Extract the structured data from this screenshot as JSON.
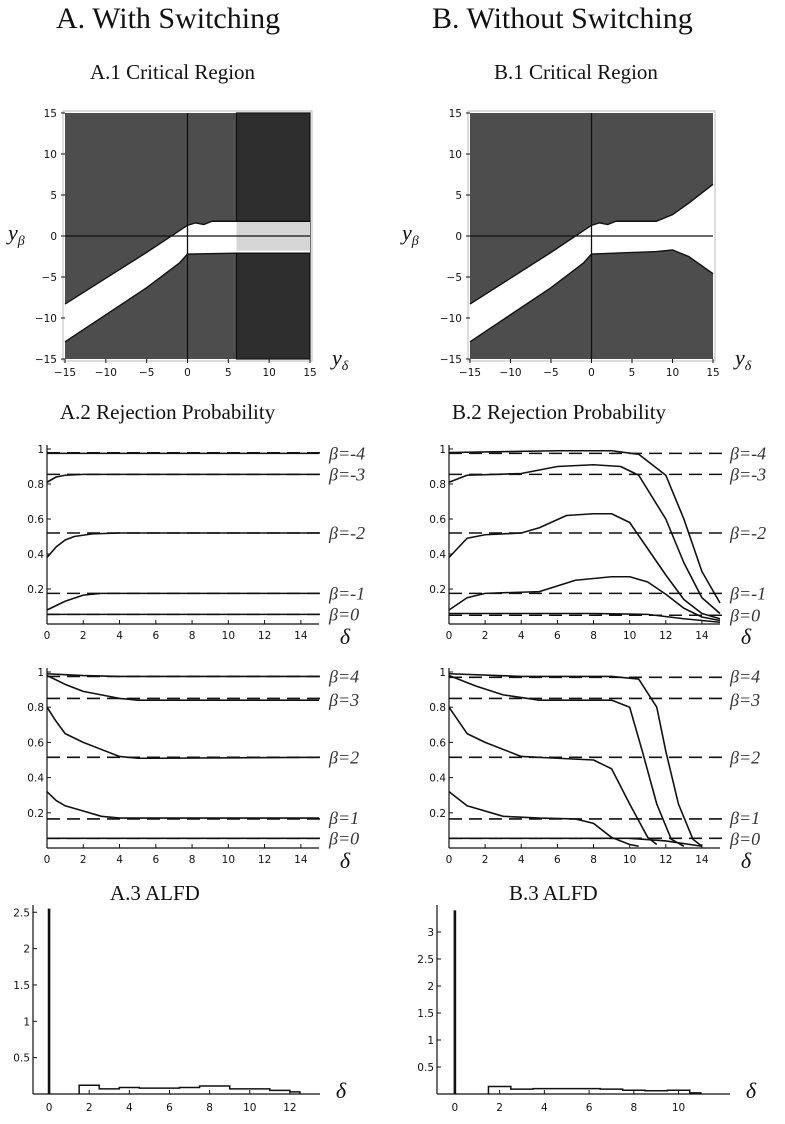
{
  "titles": {
    "colA": "A. With Switching",
    "colB": "B. Without Switching",
    "a1": "A.1 Critical Region",
    "b1": "B.1 Critical Region",
    "a2": "A.2 Rejection Probability",
    "b2": "B.2 Rejection Probability",
    "a3": "A.3 ALFD",
    "b3": "B.3 ALFD"
  },
  "colors": {
    "dark": "#4d4d4d",
    "darker": "#2e2e2e",
    "light": "#d6d6d6",
    "line": "#111111"
  },
  "chart_data": [
    {
      "id": "A1",
      "type": "area",
      "title": "A.1 Critical Region",
      "xlabel": "yδ",
      "ylabel": "yβ",
      "xlim": [
        -15,
        15
      ],
      "ylim": [
        -15,
        15
      ],
      "xticks": [
        -15,
        -10,
        -5,
        0,
        5,
        10,
        15
      ],
      "yticks": [
        -15,
        -10,
        -5,
        0,
        5,
        10,
        15
      ],
      "upper": [
        [
          -15,
          -8.3
        ],
        [
          -5,
          -2
        ],
        [
          0,
          1.3
        ],
        [
          1,
          1.6
        ],
        [
          2,
          1.4
        ],
        [
          3,
          1.8
        ],
        [
          6,
          1.8
        ],
        [
          15,
          1.8
        ]
      ],
      "lower": [
        [
          -15,
          -12.9
        ],
        [
          -5,
          -6.3
        ],
        [
          -1,
          -3.3
        ],
        [
          0,
          -2.2
        ],
        [
          6,
          -2.1
        ],
        [
          15,
          -2.1
        ]
      ],
      "switch_x": 6,
      "switch_band": [
        -1.8,
        1.8
      ]
    },
    {
      "id": "B1",
      "type": "area",
      "title": "B.1 Critical Region",
      "xlabel": "yδ",
      "ylabel": "yβ",
      "xlim": [
        -15,
        15
      ],
      "ylim": [
        -15,
        15
      ],
      "xticks": [
        -15,
        -10,
        -5,
        0,
        5,
        10,
        15
      ],
      "yticks": [
        -15,
        -10,
        -5,
        0,
        5,
        10,
        15
      ],
      "upper": [
        [
          -15,
          -8.3
        ],
        [
          -5,
          -2
        ],
        [
          0,
          1.3
        ],
        [
          1,
          1.6
        ],
        [
          2,
          1.4
        ],
        [
          3,
          1.8
        ],
        [
          8,
          1.8
        ],
        [
          10,
          2.6
        ],
        [
          12,
          4
        ],
        [
          15,
          6.3
        ]
      ],
      "lower": [
        [
          -15,
          -12.9
        ],
        [
          -5,
          -6.3
        ],
        [
          -1,
          -3.3
        ],
        [
          0,
          -2.2
        ],
        [
          8,
          -1.9
        ],
        [
          10,
          -1.7
        ],
        [
          12,
          -2.5
        ],
        [
          15,
          -4.6
        ]
      ]
    },
    {
      "id": "A2top",
      "type": "line",
      "title": "A.2 Rejection Probability",
      "xlabel": "δ",
      "xlim": [
        0,
        15
      ],
      "ylim": [
        0,
        1
      ],
      "xticks": [
        0,
        2,
        4,
        6,
        8,
        10,
        12,
        14
      ],
      "yticks": [
        0.2,
        0.4,
        0.6,
        0.8,
        1.0
      ],
      "series": [
        {
          "name": "β=-4",
          "label_y": 0.975,
          "dashed": 0.978,
          "points": [
            [
              0,
              0.975
            ],
            [
              15,
              0.975
            ]
          ]
        },
        {
          "name": "β=-3",
          "label_y": 0.855,
          "dashed": 0.855,
          "points": [
            [
              0,
              0.81
            ],
            [
              0.5,
              0.84
            ],
            [
              1,
              0.85
            ],
            [
              2,
              0.855
            ],
            [
              15,
              0.855
            ]
          ]
        },
        {
          "name": "β=-2",
          "label_y": 0.52,
          "dashed": 0.52,
          "points": [
            [
              0,
              0.38
            ],
            [
              0.5,
              0.44
            ],
            [
              1,
              0.48
            ],
            [
              1.5,
              0.5
            ],
            [
              2.5,
              0.515
            ],
            [
              4,
              0.52
            ],
            [
              15,
              0.52
            ]
          ]
        },
        {
          "name": "β=-1",
          "label_y": 0.175,
          "dashed": 0.175,
          "points": [
            [
              0,
              0.08
            ],
            [
              1,
              0.13
            ],
            [
              2,
              0.165
            ],
            [
              3,
              0.175
            ],
            [
              15,
              0.175
            ]
          ]
        },
        {
          "name": "β=0",
          "label_y": 0.055,
          "dashed": 0.055,
          "points": [
            [
              0,
              0.055
            ],
            [
              15,
              0.055
            ]
          ]
        }
      ]
    },
    {
      "id": "A2bot",
      "type": "line",
      "xlabel": "δ",
      "xlim": [
        0,
        15
      ],
      "ylim": [
        0,
        1
      ],
      "xticks": [
        0,
        2,
        4,
        6,
        8,
        10,
        12,
        14
      ],
      "yticks": [
        0.2,
        0.4,
        0.6,
        0.8,
        1.0
      ],
      "series": [
        {
          "name": "β=4",
          "label_y": 0.975,
          "dashed": 0.975,
          "points": [
            [
              0,
              0.99
            ],
            [
              1,
              0.985
            ],
            [
              2,
              0.98
            ],
            [
              4,
              0.975
            ],
            [
              15,
              0.975
            ]
          ]
        },
        {
          "name": "β=3",
          "label_y": 0.84,
          "dashed": 0.85,
          "points": [
            [
              0,
              0.98
            ],
            [
              1,
              0.93
            ],
            [
              2,
              0.89
            ],
            [
              3,
              0.87
            ],
            [
              4,
              0.85
            ],
            [
              5,
              0.84
            ],
            [
              15,
              0.84
            ]
          ]
        },
        {
          "name": "β=2",
          "label_y": 0.515,
          "dashed": 0.515,
          "points": [
            [
              0,
              0.8
            ],
            [
              0.5,
              0.72
            ],
            [
              1,
              0.65
            ],
            [
              2,
              0.6
            ],
            [
              3,
              0.56
            ],
            [
              4,
              0.52
            ],
            [
              5,
              0.51
            ],
            [
              6,
              0.51
            ],
            [
              15,
              0.515
            ]
          ]
        },
        {
          "name": "β=1",
          "label_y": 0.17,
          "dashed": 0.165,
          "points": [
            [
              0,
              0.32
            ],
            [
              0.5,
              0.27
            ],
            [
              1,
              0.24
            ],
            [
              2,
              0.21
            ],
            [
              3,
              0.18
            ],
            [
              4,
              0.17
            ],
            [
              15,
              0.17
            ]
          ]
        },
        {
          "name": "β=0",
          "label_y": 0.055,
          "dashed": 0.055,
          "points": [
            [
              0,
              0.055
            ],
            [
              15,
              0.055
            ]
          ]
        }
      ]
    },
    {
      "id": "B2top",
      "type": "line",
      "title": "B.2 Rejection Probability",
      "xlabel": "δ",
      "xlim": [
        0,
        15
      ],
      "ylim": [
        0,
        1
      ],
      "xticks": [
        0,
        2,
        4,
        6,
        8,
        10,
        12,
        14
      ],
      "yticks": [
        0.2,
        0.4,
        0.6,
        0.8,
        1.0
      ],
      "series": [
        {
          "name": "β=-4",
          "label_y": 0.975,
          "dashed": 0.975,
          "points": [
            [
              0,
              0.98
            ],
            [
              6,
              0.99
            ],
            [
              9,
              0.99
            ],
            [
              10.5,
              0.97
            ],
            [
              12,
              0.85
            ],
            [
              13,
              0.6
            ],
            [
              14,
              0.3
            ],
            [
              15,
              0.12
            ]
          ]
        },
        {
          "name": "β=-3",
          "label_y": 0.855,
          "dashed": 0.855,
          "points": [
            [
              0,
              0.81
            ],
            [
              1,
              0.85
            ],
            [
              4,
              0.86
            ],
            [
              6,
              0.9
            ],
            [
              8,
              0.91
            ],
            [
              9.5,
              0.9
            ],
            [
              10.5,
              0.85
            ],
            [
              12,
              0.6
            ],
            [
              13,
              0.35
            ],
            [
              14,
              0.15
            ],
            [
              15,
              0.06
            ]
          ]
        },
        {
          "name": "β=-2",
          "label_y": 0.52,
          "dashed": 0.52,
          "points": [
            [
              0,
              0.38
            ],
            [
              1,
              0.49
            ],
            [
              2,
              0.51
            ],
            [
              4,
              0.52
            ],
            [
              5,
              0.55
            ],
            [
              6.5,
              0.62
            ],
            [
              8,
              0.63
            ],
            [
              9,
              0.63
            ],
            [
              10,
              0.58
            ],
            [
              11,
              0.43
            ],
            [
              12,
              0.28
            ],
            [
              13,
              0.14
            ],
            [
              14,
              0.06
            ],
            [
              15,
              0.03
            ]
          ]
        },
        {
          "name": "β=-1",
          "label_y": 0.175,
          "dashed": 0.175,
          "points": [
            [
              0,
              0.08
            ],
            [
              1,
              0.15
            ],
            [
              2,
              0.175
            ],
            [
              5,
              0.185
            ],
            [
              7,
              0.25
            ],
            [
              9,
              0.27
            ],
            [
              10,
              0.27
            ],
            [
              11,
              0.24
            ],
            [
              12,
              0.17
            ],
            [
              13,
              0.09
            ],
            [
              14,
              0.04
            ],
            [
              15,
              0.02
            ]
          ]
        },
        {
          "name": "β=0",
          "label_y": 0.05,
          "dashed": 0.05,
          "points": [
            [
              0,
              0.06
            ],
            [
              8,
              0.06
            ],
            [
              11,
              0.055
            ],
            [
              13,
              0.03
            ],
            [
              15,
              0.01
            ]
          ]
        }
      ]
    },
    {
      "id": "B2bot",
      "type": "line",
      "xlabel": "δ",
      "xlim": [
        0,
        15
      ],
      "ylim": [
        0,
        1
      ],
      "xticks": [
        0,
        2,
        4,
        6,
        8,
        10,
        12,
        14
      ],
      "yticks": [
        0.2,
        0.4,
        0.6,
        0.8,
        1.0
      ],
      "series": [
        {
          "name": "β=4",
          "label_y": 0.975,
          "dashed": 0.97,
          "points": [
            [
              0,
              0.99
            ],
            [
              4,
              0.975
            ],
            [
              9,
              0.975
            ],
            [
              10.5,
              0.96
            ],
            [
              11.5,
              0.8
            ],
            [
              12,
              0.55
            ],
            [
              12.7,
              0.25
            ],
            [
              13.5,
              0.05
            ],
            [
              14,
              0.01
            ]
          ]
        },
        {
          "name": "β=3",
          "label_y": 0.84,
          "dashed": 0.85,
          "points": [
            [
              0,
              0.98
            ],
            [
              1.5,
              0.92
            ],
            [
              3,
              0.87
            ],
            [
              5,
              0.84
            ],
            [
              9,
              0.84
            ],
            [
              10,
              0.8
            ],
            [
              10.7,
              0.55
            ],
            [
              11.5,
              0.25
            ],
            [
              12.3,
              0.05
            ],
            [
              13,
              0.01
            ]
          ]
        },
        {
          "name": "β=2",
          "label_y": 0.515,
          "dashed": 0.515,
          "points": [
            [
              0,
              0.8
            ],
            [
              1,
              0.65
            ],
            [
              2,
              0.6
            ],
            [
              4,
              0.52
            ],
            [
              6,
              0.51
            ],
            [
              8,
              0.5
            ],
            [
              9,
              0.45
            ],
            [
              10,
              0.25
            ],
            [
              11,
              0.06
            ],
            [
              11.5,
              0.02
            ]
          ]
        },
        {
          "name": "β=1",
          "label_y": 0.17,
          "dashed": 0.165,
          "points": [
            [
              0,
              0.32
            ],
            [
              1,
              0.24
            ],
            [
              3,
              0.18
            ],
            [
              5,
              0.17
            ],
            [
              7,
              0.165
            ],
            [
              8,
              0.14
            ],
            [
              9,
              0.06
            ],
            [
              10,
              0.02
            ],
            [
              10.5,
              0.01
            ]
          ]
        },
        {
          "name": "β=0",
          "label_y": 0.05,
          "dashed": 0.055,
          "points": [
            [
              0,
              0.055
            ],
            [
              10,
              0.055
            ],
            [
              12,
              0.04
            ],
            [
              14,
              0.01
            ]
          ]
        }
      ]
    },
    {
      "id": "A3",
      "type": "bar",
      "title": "A.3 ALFD",
      "xlabel": "δ",
      "xlim": [
        -0.8,
        13.5
      ],
      "ylim": [
        0,
        2.6
      ],
      "xticks": [
        0,
        2,
        4,
        6,
        8,
        10,
        12
      ],
      "yticks": [
        0.5,
        1.0,
        1.5,
        2.0,
        2.5
      ],
      "spike": 2.55,
      "steps": [
        [
          1.5,
          0.12
        ],
        [
          2.5,
          0.07
        ],
        [
          3.5,
          0.09
        ],
        [
          4.5,
          0.08
        ],
        [
          5.5,
          0.08
        ],
        [
          6.5,
          0.09
        ],
        [
          7.5,
          0.11
        ],
        [
          9,
          0.07
        ],
        [
          10,
          0.07
        ],
        [
          11,
          0.05
        ],
        [
          12,
          0.03
        ],
        [
          12.5,
          0.0
        ]
      ]
    },
    {
      "id": "B3",
      "type": "bar",
      "title": "B.3 ALFD",
      "xlabel": "δ",
      "xlim": [
        -0.8,
        12.3
      ],
      "ylim": [
        0,
        3.5
      ],
      "xticks": [
        0,
        2,
        4,
        6,
        8,
        10
      ],
      "yticks": [
        0.5,
        1.0,
        1.5,
        2.0,
        2.5,
        3.0
      ],
      "spike": 3.4,
      "steps": [
        [
          1.5,
          0.14
        ],
        [
          2.5,
          0.09
        ],
        [
          3.5,
          0.1
        ],
        [
          4.5,
          0.1
        ],
        [
          5.5,
          0.1
        ],
        [
          6.5,
          0.09
        ],
        [
          7.5,
          0.07
        ],
        [
          8.5,
          0.06
        ],
        [
          9.5,
          0.07
        ],
        [
          10.5,
          0.02
        ],
        [
          11,
          0.0
        ]
      ]
    }
  ]
}
